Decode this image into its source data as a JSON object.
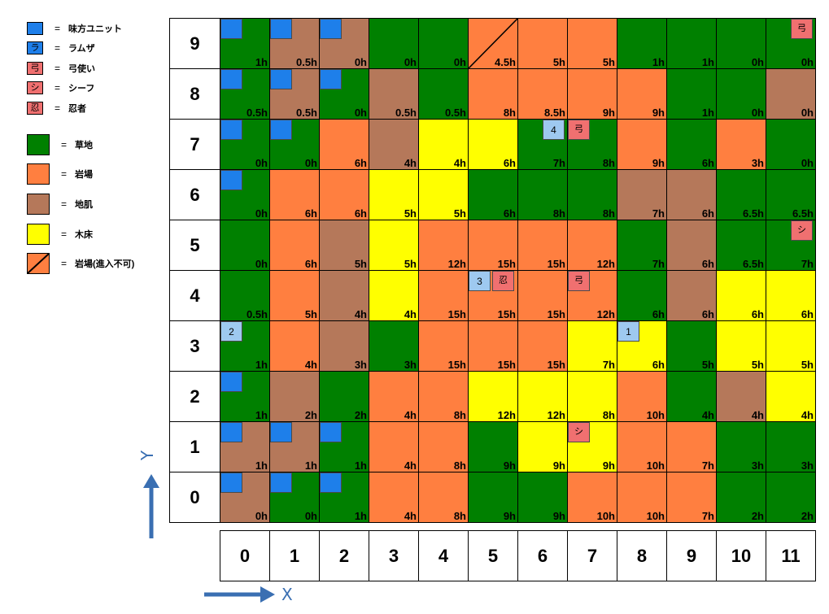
{
  "legend": {
    "equals": "=",
    "items": [
      {
        "key": "ally",
        "swatch_text": "",
        "label": "味方ユニット",
        "color": "#1e7fea"
      },
      {
        "key": "ramza",
        "swatch_text": "ラ",
        "label": "ラムザ",
        "color": "#1e7fea"
      },
      {
        "key": "archer",
        "swatch_text": "弓",
        "label": "弓使い",
        "color": "#f07070"
      },
      {
        "key": "thief",
        "swatch_text": "シ",
        "label": "シーフ",
        "color": "#f07070"
      },
      {
        "key": "ninja",
        "swatch_text": "忍",
        "label": "忍者",
        "color": "#f07070"
      },
      {
        "key": "grass",
        "swatch_text": "",
        "label": "草地",
        "color": "#008000"
      },
      {
        "key": "rock",
        "swatch_text": "",
        "label": "岩場",
        "color": "#ff7f40"
      },
      {
        "key": "soil",
        "swatch_text": "",
        "label": "地肌",
        "color": "#b5785a"
      },
      {
        "key": "wood",
        "swatch_text": "",
        "label": "木床",
        "color": "#ffff00"
      },
      {
        "key": "blocked",
        "swatch_text": "",
        "label": "岩場(進入不可)",
        "color": "#ff7f40"
      }
    ]
  },
  "terrain_colors": {
    "G": "#008000",
    "R": "#ff7f40",
    "S": "#b5785a",
    "W": "#ffff00",
    "X": "#ff7f40"
  },
  "unit_colors": {
    "ally": "#1e7fea",
    "num": "#9ec9f0",
    "enemy": "#f07070"
  },
  "axes": {
    "x_label": "X",
    "y_label": "Y",
    "x_values": [
      "0",
      "1",
      "2",
      "3",
      "4",
      "5",
      "6",
      "7",
      "8",
      "9",
      "10",
      "11"
    ],
    "y_values": [
      "9",
      "8",
      "7",
      "6",
      "5",
      "4",
      "3",
      "2",
      "1",
      "0"
    ]
  },
  "grid": {
    "rows": [
      {
        "y": "9",
        "terrain": [
          "G",
          "S",
          "S",
          "G",
          "G",
          "X",
          "R",
          "R",
          "G",
          "G",
          "G",
          "G"
        ],
        "cost": [
          "1h",
          "0.5h",
          "0h",
          "0h",
          "0h",
          "4.5h",
          "5h",
          "5h",
          "1h",
          "1h",
          "0h",
          "0h"
        ]
      },
      {
        "y": "8",
        "terrain": [
          "G",
          "S",
          "G",
          "S",
          "G",
          "R",
          "R",
          "R",
          "R",
          "G",
          "G",
          "S"
        ],
        "cost": [
          "0.5h",
          "0.5h",
          "0h",
          "0.5h",
          "0.5h",
          "8h",
          "8.5h",
          "9h",
          "9h",
          "1h",
          "0h",
          "0h"
        ]
      },
      {
        "y": "7",
        "terrain": [
          "G",
          "G",
          "R",
          "S",
          "W",
          "W",
          "G",
          "G",
          "R",
          "G",
          "R",
          "G"
        ],
        "cost": [
          "0h",
          "0h",
          "6h",
          "4h",
          "4h",
          "6h",
          "7h",
          "8h",
          "9h",
          "6h",
          "3h",
          "0h"
        ]
      },
      {
        "y": "6",
        "terrain": [
          "G",
          "R",
          "R",
          "W",
          "W",
          "G",
          "G",
          "G",
          "S",
          "S",
          "G",
          "G"
        ],
        "cost": [
          "0h",
          "6h",
          "6h",
          "5h",
          "5h",
          "6h",
          "8h",
          "8h",
          "7h",
          "6h",
          "6.5h",
          "6.5h"
        ]
      },
      {
        "y": "5",
        "terrain": [
          "G",
          "R",
          "S",
          "W",
          "R",
          "R",
          "R",
          "R",
          "G",
          "S",
          "G",
          "G"
        ],
        "cost": [
          "0h",
          "6h",
          "5h",
          "5h",
          "12h",
          "15h",
          "15h",
          "12h",
          "7h",
          "6h",
          "6.5h",
          "7h"
        ]
      },
      {
        "y": "4",
        "terrain": [
          "G",
          "R",
          "S",
          "W",
          "R",
          "R",
          "R",
          "R",
          "G",
          "S",
          "W",
          "W"
        ],
        "cost": [
          "0.5h",
          "5h",
          "4h",
          "4h",
          "15h",
          "15h",
          "15h",
          "12h",
          "6h",
          "6h",
          "6h",
          "6h"
        ]
      },
      {
        "y": "3",
        "terrain": [
          "G",
          "R",
          "S",
          "G",
          "R",
          "R",
          "R",
          "W",
          "W",
          "G",
          "W",
          "W"
        ],
        "cost": [
          "1h",
          "4h",
          "3h",
          "3h",
          "15h",
          "15h",
          "15h",
          "7h",
          "6h",
          "5h",
          "5h",
          "5h"
        ]
      },
      {
        "y": "2",
        "terrain": [
          "G",
          "S",
          "G",
          "R",
          "R",
          "W",
          "W",
          "W",
          "R",
          "G",
          "S",
          "W"
        ],
        "cost": [
          "1h",
          "2h",
          "2h",
          "4h",
          "8h",
          "12h",
          "12h",
          "8h",
          "10h",
          "4h",
          "4h",
          "4h"
        ]
      },
      {
        "y": "1",
        "terrain": [
          "S",
          "S",
          "G",
          "R",
          "R",
          "G",
          "W",
          "W",
          "R",
          "R",
          "G",
          "G"
        ],
        "cost": [
          "1h",
          "1h",
          "1h",
          "4h",
          "8h",
          "9h",
          "9h",
          "9h",
          "10h",
          "7h",
          "3h",
          "3h"
        ]
      },
      {
        "y": "0",
        "terrain": [
          "S",
          "G",
          "G",
          "R",
          "R",
          "G",
          "G",
          "R",
          "R",
          "R",
          "G",
          "G"
        ],
        "cost": [
          "0h",
          "0h",
          "1h",
          "4h",
          "8h",
          "9h",
          "9h",
          "10h",
          "10h",
          "7h",
          "2h",
          "2h"
        ]
      }
    ]
  },
  "units": [
    {
      "col": 0,
      "row": 0,
      "type": "ally",
      "text": "",
      "pos": "tl"
    },
    {
      "col": 1,
      "row": 0,
      "type": "ally",
      "text": "",
      "pos": "tl"
    },
    {
      "col": 2,
      "row": 0,
      "type": "ally",
      "text": "",
      "pos": "tl"
    },
    {
      "col": 11,
      "row": 0,
      "type": "enemy",
      "text": "弓",
      "pos": "tr"
    },
    {
      "col": 0,
      "row": 1,
      "type": "ally",
      "text": "",
      "pos": "tl"
    },
    {
      "col": 1,
      "row": 1,
      "type": "ally",
      "text": "",
      "pos": "tl"
    },
    {
      "col": 2,
      "row": 1,
      "type": "ally",
      "text": "",
      "pos": "tl"
    },
    {
      "col": 0,
      "row": 2,
      "type": "ally",
      "text": "",
      "pos": "tl"
    },
    {
      "col": 1,
      "row": 2,
      "type": "ally",
      "text": "",
      "pos": "tl"
    },
    {
      "col": 6,
      "row": 2,
      "type": "num",
      "text": "4",
      "pos": "tr"
    },
    {
      "col": 7,
      "row": 2,
      "type": "enemy",
      "text": "弓",
      "pos": "tl"
    },
    {
      "col": 0,
      "row": 3,
      "type": "ally",
      "text": "",
      "pos": "tl"
    },
    {
      "col": 11,
      "row": 4,
      "type": "enemy",
      "text": "シ",
      "pos": "tr"
    },
    {
      "col": 5,
      "row": 5,
      "type": "num",
      "text": "3",
      "pos": "tl"
    },
    {
      "col": 5,
      "row": 5,
      "type": "enemy",
      "text": "忍",
      "pos": "tr2"
    },
    {
      "col": 7,
      "row": 5,
      "type": "enemy",
      "text": "弓",
      "pos": "tl"
    },
    {
      "col": 0,
      "row": 6,
      "type": "num",
      "text": "2",
      "pos": "tl"
    },
    {
      "col": 8,
      "row": 6,
      "type": "num",
      "text": "1",
      "pos": "tl"
    },
    {
      "col": 0,
      "row": 7,
      "type": "ally",
      "text": "",
      "pos": "tl"
    },
    {
      "col": 0,
      "row": 8,
      "type": "ally",
      "text": "",
      "pos": "tl"
    },
    {
      "col": 1,
      "row": 8,
      "type": "ally",
      "text": "",
      "pos": "tl"
    },
    {
      "col": 2,
      "row": 8,
      "type": "ally",
      "text": "",
      "pos": "tl"
    },
    {
      "col": 7,
      "row": 8,
      "type": "enemy",
      "text": "シ",
      "pos": "tl"
    },
    {
      "col": 0,
      "row": 9,
      "type": "ally",
      "text": "",
      "pos": "tl"
    },
    {
      "col": 1,
      "row": 9,
      "type": "ally",
      "text": "",
      "pos": "tl"
    },
    {
      "col": 2,
      "row": 9,
      "type": "ally",
      "text": "",
      "pos": "tl"
    }
  ]
}
